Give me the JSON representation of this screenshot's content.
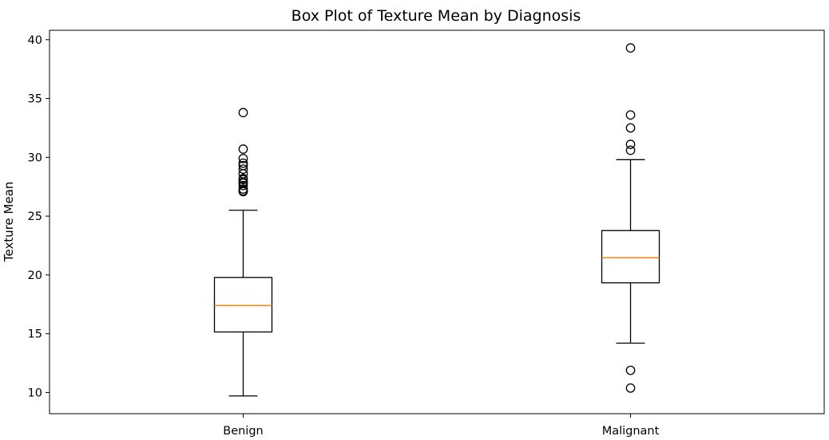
{
  "chart_data": {
    "type": "box",
    "title": "Box Plot of Texture Mean by Diagnosis",
    "xlabel": "",
    "ylabel": "Texture Mean",
    "ylim": [
      8.2,
      40.8
    ],
    "yticks": [
      10,
      15,
      20,
      25,
      30,
      35,
      40
    ],
    "categories": [
      "Benign",
      "Malignant"
    ],
    "grid": false,
    "legend": "none",
    "colors": {
      "median": "#ff7f0e",
      "box": "#000000",
      "axes": "#000000",
      "background": "#ffffff"
    },
    "series": [
      {
        "category": "Benign",
        "whisker_low": 9.71,
        "q1": 15.15,
        "median": 17.39,
        "q3": 19.78,
        "whisker_high": 25.5,
        "outliers": [
          27.08,
          27.15,
          27.3,
          27.6,
          27.8,
          27.9,
          28.1,
          28.2,
          28.6,
          29.0,
          29.3,
          29.5,
          29.9,
          30.7,
          33.8
        ]
      },
      {
        "category": "Malignant",
        "whisker_low": 14.2,
        "q1": 19.33,
        "median": 21.46,
        "q3": 23.77,
        "whisker_high": 29.8,
        "outliers": [
          10.38,
          11.89,
          30.6,
          31.1,
          32.5,
          33.6,
          39.3
        ]
      }
    ]
  }
}
